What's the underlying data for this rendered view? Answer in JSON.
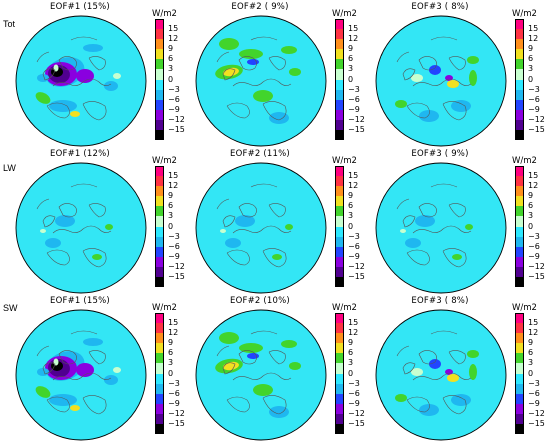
{
  "figure": {
    "units_label": "W/m2",
    "colorbar_ticks": [
      "15",
      "12",
      "9",
      "6",
      "3",
      "0",
      "−3",
      "−6",
      "−9",
      "−12",
      "−15"
    ],
    "colorbar_colors": [
      "#ff0080",
      "#ff3344",
      "#ff8f1c",
      "#f2e020",
      "#42d42c",
      "#c7ffd0",
      "#2ce8ff",
      "#1fb7f0",
      "#2244ff",
      "#8a00e0",
      "#500090",
      "#000000"
    ],
    "ocean_color": "#33e6f5",
    "rows": [
      {
        "label": "Tot",
        "panels": [
          {
            "title": "EOF#1 (15%)",
            "pattern": "strong"
          },
          {
            "title": "EOF#2 ( 9%)",
            "pattern": "warm"
          },
          {
            "title": "EOF#3 ( 8%)",
            "pattern": "mixed"
          }
        ]
      },
      {
        "label": "LW",
        "panels": [
          {
            "title": "EOF#1 (12%)",
            "pattern": "calm"
          },
          {
            "title": "EOF#2 (11%)",
            "pattern": "calm"
          },
          {
            "title": "EOF#3 ( 9%)",
            "pattern": "calm"
          }
        ]
      },
      {
        "label": "SW",
        "panels": [
          {
            "title": "EOF#1 (15%)",
            "pattern": "strong"
          },
          {
            "title": "EOF#2 (10%)",
            "pattern": "warm"
          },
          {
            "title": "EOF#3 ( 8%)",
            "pattern": "mixed"
          }
        ]
      }
    ]
  }
}
